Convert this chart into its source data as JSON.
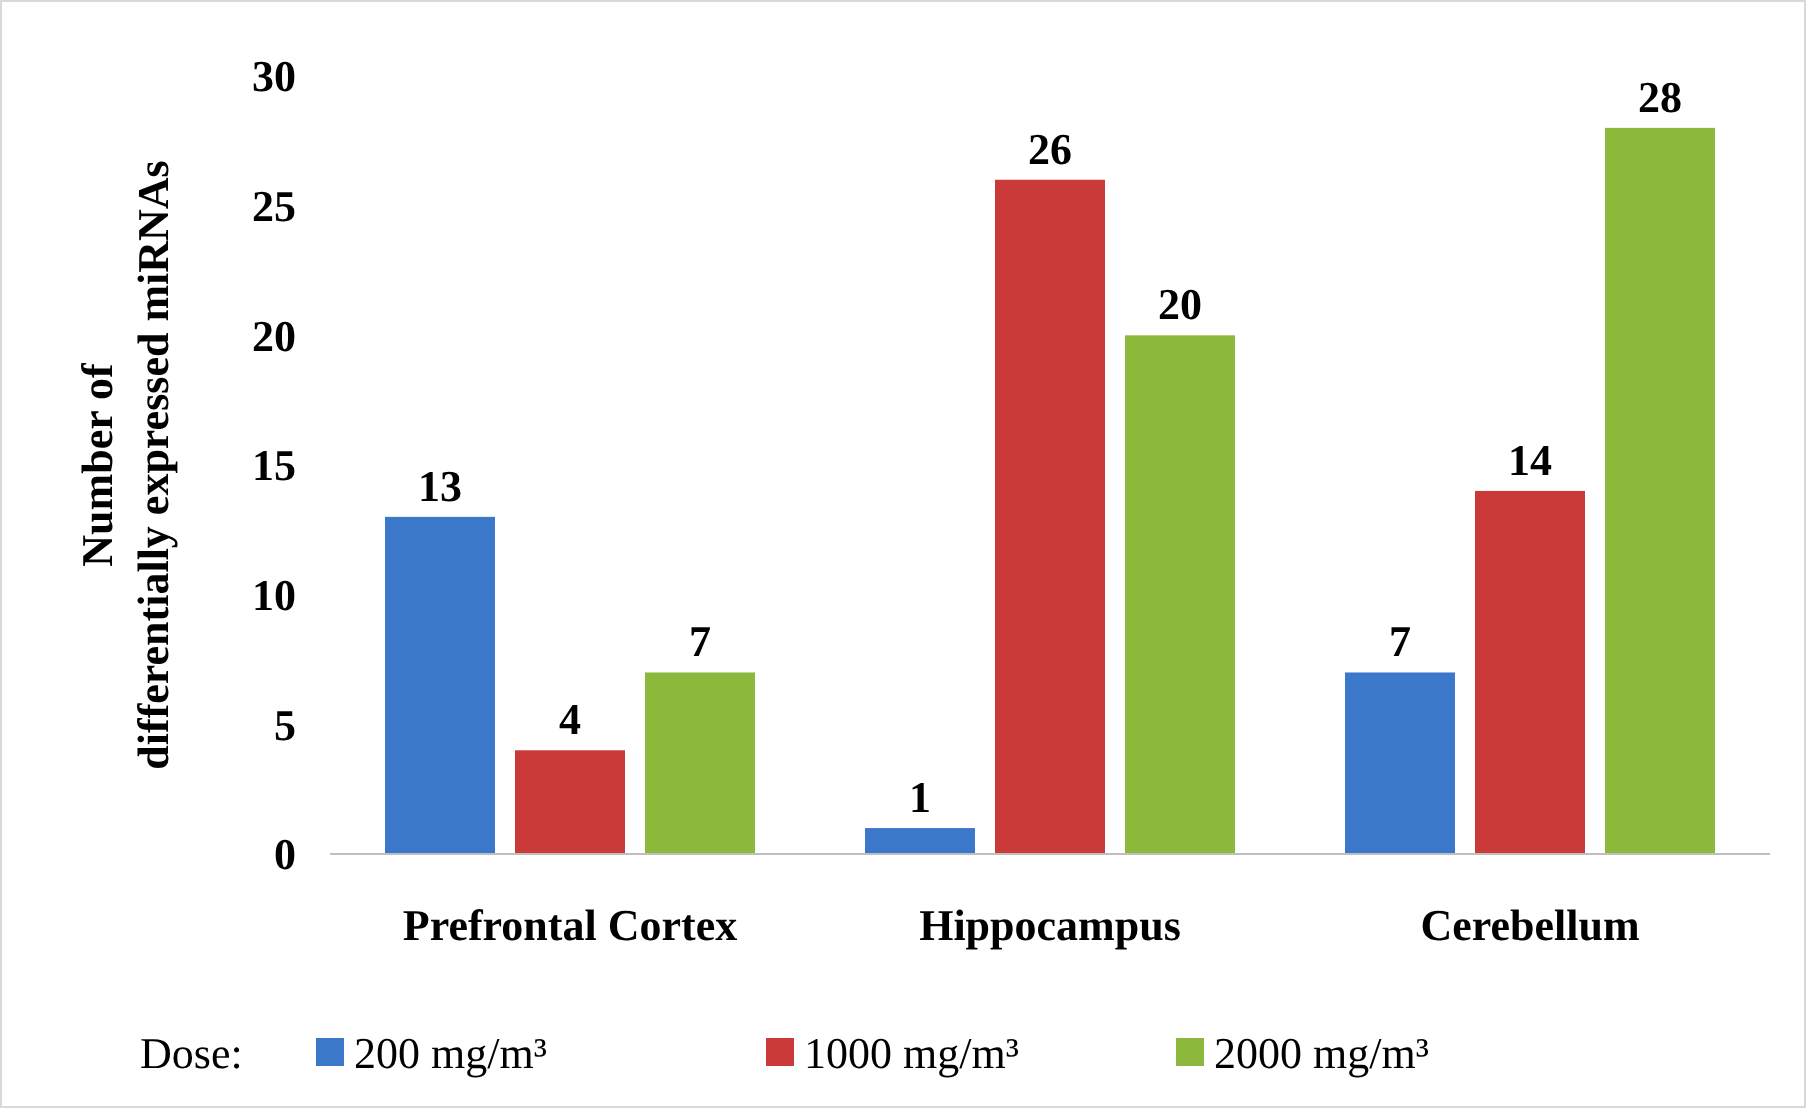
{
  "chart_data": {
    "type": "bar",
    "ylabel": "Number of differentially expressed miRNAs",
    "categories": [
      "Prefrontal Cortex",
      "Hippocampus",
      "Cerebellum"
    ],
    "series": [
      {
        "name": "200 mg/m³",
        "color": "#3b78c9",
        "values": [
          13,
          1,
          7
        ]
      },
      {
        "name": "1000 mg/m³",
        "color": "#c93a38",
        "values": [
          4,
          26,
          14
        ]
      },
      {
        "name": "2000 mg/m³",
        "color": "#8cb83c",
        "values": [
          7,
          20,
          28
        ]
      }
    ],
    "ylim": [
      0,
      30
    ],
    "yticks": [
      0,
      5,
      10,
      15,
      20,
      25,
      30
    ],
    "grid": false,
    "data_labels": true,
    "legend": "bottom",
    "legend_title": "Dose:"
  }
}
